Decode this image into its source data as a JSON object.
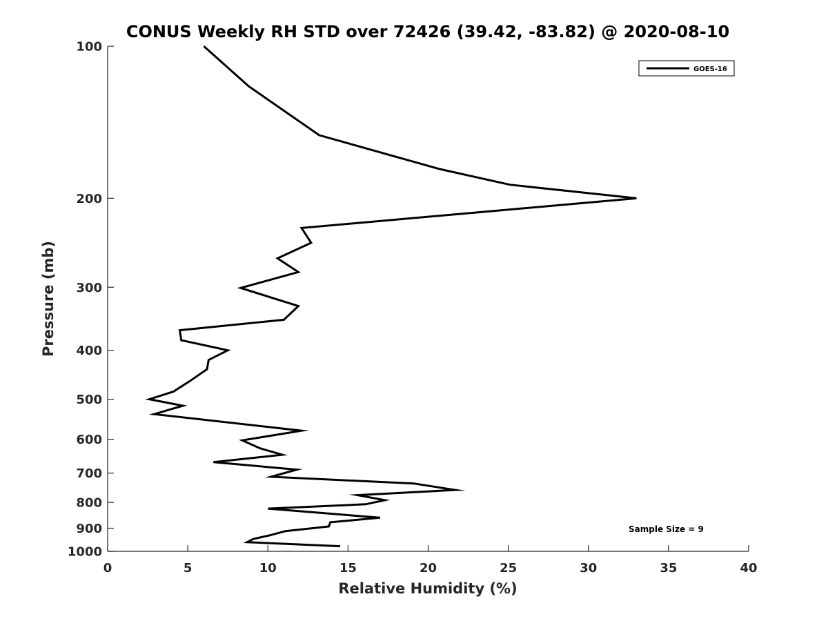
{
  "chart_data": {
    "type": "line",
    "title": "CONUS Weekly RH STD over 72426 (39.42, -83.82) @ 2020-08-10",
    "xlabel": "Relative Humidity (%)",
    "ylabel": "Pressure (mb)",
    "xlim": [
      0,
      40
    ],
    "ylim": [
      100,
      1000
    ],
    "y_scale": "log",
    "y_reversed": true,
    "x_ticks": [
      "0",
      "5",
      "10",
      "15",
      "20",
      "25",
      "30",
      "35",
      "40"
    ],
    "y_ticks": [
      "100",
      "200",
      "300",
      "400",
      "500",
      "600",
      "700",
      "800",
      "900",
      "1000"
    ],
    "grid": false,
    "legend_position": "top-right",
    "series": [
      {
        "name": "GOES-16",
        "color": "#000000",
        "x": [
          6.0,
          8.8,
          13.2,
          20.7,
          25.1,
          33.0,
          12.1,
          12.7,
          10.6,
          11.9,
          8.3,
          11.9,
          11.0,
          4.5,
          4.6,
          7.5,
          6.3,
          6.2,
          5.1,
          4.1,
          2.6,
          4.7,
          2.9,
          12.1,
          8.4,
          9.5,
          10.9,
          6.6,
          11.8,
          10.2,
          19.1,
          21.7,
          15.6,
          17.3,
          16.1,
          10.0,
          17.0,
          13.9,
          13.8,
          11.1,
          10.1,
          9.1,
          8.7,
          14.5
        ],
        "y": [
          100,
          120,
          150,
          175,
          188,
          200,
          229,
          245,
          263,
          280,
          301,
          327,
          348,
          365,
          382,
          400,
          418,
          436,
          461,
          483,
          500,
          515,
          535,
          577,
          603,
          625,
          644,
          666,
          689,
          712,
          734,
          756,
          774,
          792,
          807,
          823,
          858,
          876,
          893,
          912,
          930,
          945,
          959,
          977
        ]
      }
    ],
    "annotations": [
      "Sample Size = 9"
    ]
  }
}
